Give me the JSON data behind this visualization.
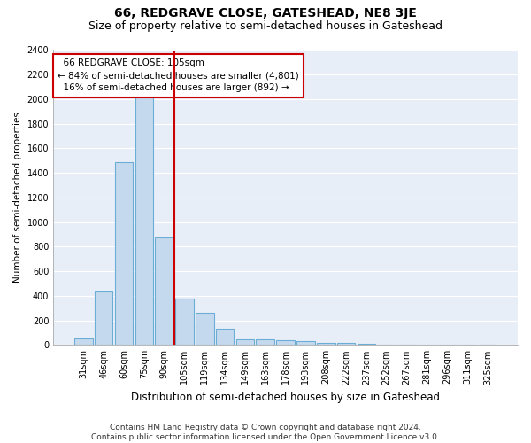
{
  "title": "66, REDGRAVE CLOSE, GATESHEAD, NE8 3JE",
  "subtitle": "Size of property relative to semi-detached houses in Gateshead",
  "xlabel": "Distribution of semi-detached houses by size in Gateshead",
  "ylabel": "Number of semi-detached properties",
  "categories": [
    "31sqm",
    "46sqm",
    "60sqm",
    "75sqm",
    "90sqm",
    "105sqm",
    "119sqm",
    "134sqm",
    "149sqm",
    "163sqm",
    "178sqm",
    "193sqm",
    "208sqm",
    "222sqm",
    "237sqm",
    "252sqm",
    "267sqm",
    "281sqm",
    "296sqm",
    "311sqm",
    "325sqm"
  ],
  "values": [
    50,
    435,
    1490,
    2020,
    875,
    375,
    260,
    135,
    45,
    45,
    35,
    30,
    20,
    15,
    10,
    5,
    5,
    5,
    5,
    5,
    5
  ],
  "bar_color": "#c5d9ee",
  "bar_edge_color": "#6aaed6",
  "marker_index": 5,
  "marker_label": "66 REDGRAVE CLOSE: 105sqm",
  "smaller_pct": "84%",
  "smaller_count": "4,801",
  "larger_pct": "16%",
  "larger_count": "892",
  "annotation_box_color": "#cc0000",
  "marker_line_color": "#cc0000",
  "ylim": [
    0,
    2400
  ],
  "yticks": [
    0,
    200,
    400,
    600,
    800,
    1000,
    1200,
    1400,
    1600,
    1800,
    2000,
    2200,
    2400
  ],
  "ax_background_color": "#e8eef8",
  "fig_background_color": "#ffffff",
  "grid_color": "#ffffff",
  "footer_line1": "Contains HM Land Registry data © Crown copyright and database right 2024.",
  "footer_line2": "Contains public sector information licensed under the Open Government Licence v3.0.",
  "title_fontsize": 10,
  "subtitle_fontsize": 9,
  "xlabel_fontsize": 8.5,
  "ylabel_fontsize": 7.5,
  "tick_fontsize": 7,
  "annot_fontsize": 7.5,
  "footer_fontsize": 6.5
}
